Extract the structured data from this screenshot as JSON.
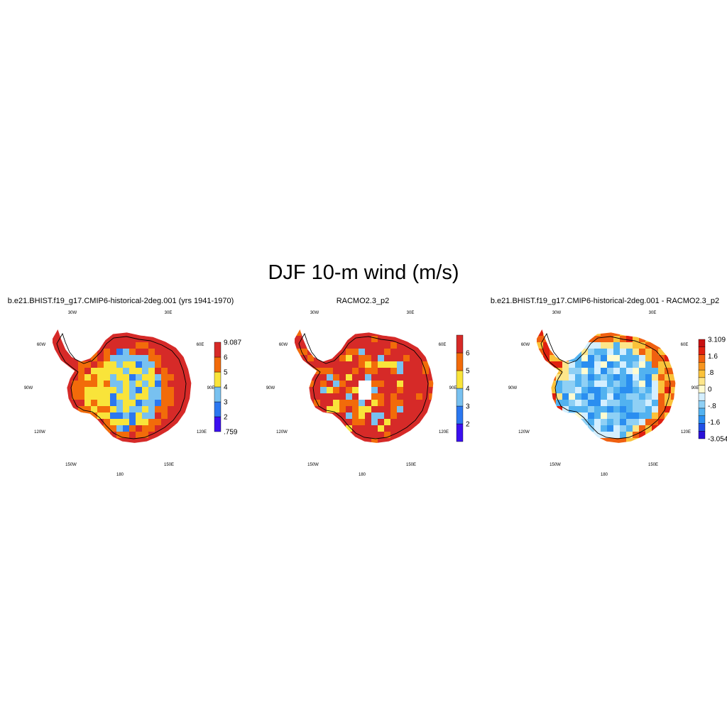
{
  "title": "DJF 10-m wind (m/s)",
  "lon_labels": [
    "30W",
    "30E",
    "60W",
    "60E",
    "90W",
    "90E",
    "120W",
    "120E",
    "150W",
    "150E",
    "180"
  ],
  "panels": [
    {
      "title": "b.e21.BHIST.f19_g17.CMIP6-historical-2deg.001 (yrs 1941-1970)",
      "colorbar": {
        "colors": [
          "#3b0ff0",
          "#2b77f0",
          "#78c1f0",
          "#f9e43a",
          "#f26b0a",
          "#d62a28"
        ],
        "labels": [
          ".759",
          "2",
          "3",
          "4",
          "5",
          "6",
          "9.087"
        ]
      }
    },
    {
      "title": "RACMO2.3_p2",
      "colorbar": {
        "colors": [
          "#3b0ff0",
          "#2b77f0",
          "#78c1f0",
          "#f9e43a",
          "#f26b0a",
          "#d62a28"
        ],
        "labels": [
          "2",
          "3",
          "4",
          "5",
          "6"
        ]
      }
    },
    {
      "title": "b.e21.BHIST.f19_g17.CMIP6-historical-2deg.001 - RACMO2.3_p2",
      "colorbar": {
        "colors": [
          "#2a10d8",
          "#1f4fe6",
          "#2a8ef0",
          "#52b2f0",
          "#8fd0f5",
          "#d4efff",
          "#fffbd0",
          "#fde68a",
          "#fbc23a",
          "#f7951f",
          "#f06010",
          "#e02010",
          "#c81010"
        ],
        "labels": [
          "-3.054",
          "-1.6",
          "-.8",
          "0",
          ".8",
          "1.6",
          "3.109"
        ]
      }
    }
  ]
}
